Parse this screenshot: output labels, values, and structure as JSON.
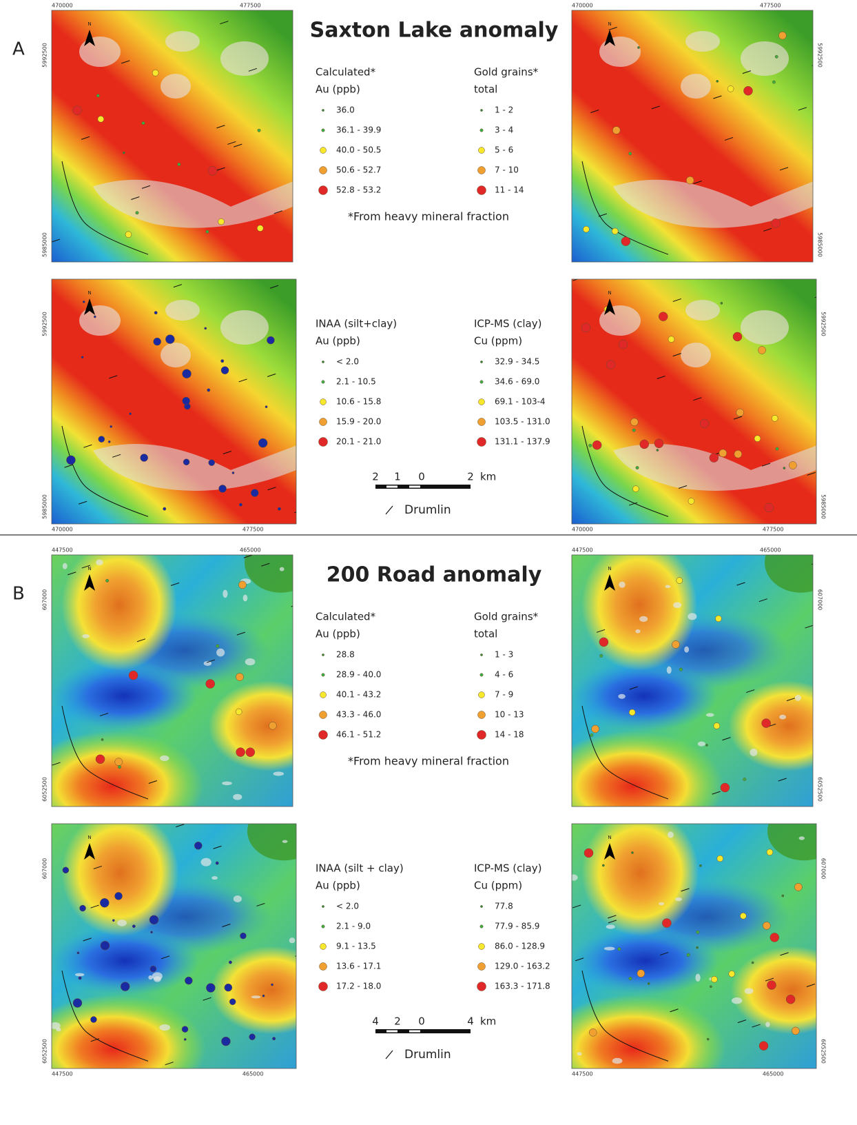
{
  "figure": {
    "panels": [
      {
        "label": "A",
        "title": "Saxton Lake anomaly",
        "north": "N",
        "x_labels": [
          "470000",
          "477500"
        ],
        "y_labels": [
          "5992500",
          "5985000"
        ],
        "legends": [
          {
            "header": "Calculated*",
            "unit": "Au (ppb)",
            "items": [
              "36.0",
              "36.1 - 39.9",
              "40.0 - 50.5",
              "50.6 - 52.7",
              "52.8 - 53.2"
            ]
          },
          {
            "header": "Gold grains*",
            "unit": "total",
            "items": [
              "1 - 2",
              "3 - 4",
              "5 - 6",
              "7 - 10",
              "11 - 14"
            ]
          },
          {
            "header": "INAA (silt+clay)",
            "unit": "Au (ppb)",
            "items": [
              "< 2.0",
              "2.1 - 10.5",
              "10.6 - 15.8",
              "15.9 - 20.0",
              "20.1 - 21.0"
            ]
          },
          {
            "header": "ICP-MS (clay)",
            "unit": "Cu (ppm)",
            "items": [
              "32.9 - 34.5",
              "34.6 - 69.0",
              "69.1 - 103-4",
              "103.5 - 131.0",
              "131.1 - 137.9"
            ]
          }
        ],
        "footnote": "*From heavy mineral fraction",
        "scale": {
          "ticks": [
            "2",
            "1",
            "0",
            "2"
          ],
          "unit": "km"
        },
        "drumlin": "Drumlin"
      },
      {
        "label": "B",
        "title": "200 Road anomaly",
        "north": "N",
        "x_labels": [
          "447500",
          "465000"
        ],
        "y_labels": [
          "607000",
          "6052500"
        ],
        "legends": [
          {
            "header": "Calculated*",
            "unit": "Au (ppb)",
            "items": [
              "28.8",
              "28.9 - 40.0",
              "40.1 - 43.2",
              "43.3 - 46.0",
              "46.1 - 51.2"
            ]
          },
          {
            "header": "Gold grains*",
            "unit": "total",
            "items": [
              "1 - 3",
              "4 - 6",
              "7 - 9",
              "10 - 13",
              "14 - 18"
            ]
          },
          {
            "header": "INAA (silt + clay)",
            "unit": "Au (ppb)",
            "items": [
              "< 2.0",
              "2.1 - 9.0",
              "9.1 - 13.5",
              "13.6 - 17.1",
              "17.2 - 18.0"
            ]
          },
          {
            "header": "ICP-MS (clay)",
            "unit": "Cu (ppm)",
            "items": [
              "77.8",
              "77.9 - 85.9",
              "86.0 - 128.9",
              "129.0 - 163.2",
              "163.3 - 171.8"
            ]
          }
        ],
        "footnote": "*From heavy mineral fraction",
        "scale": {
          "ticks": [
            "4",
            "2",
            "0",
            "4"
          ],
          "unit": "km"
        },
        "drumlin": "Drumlin"
      }
    ]
  }
}
